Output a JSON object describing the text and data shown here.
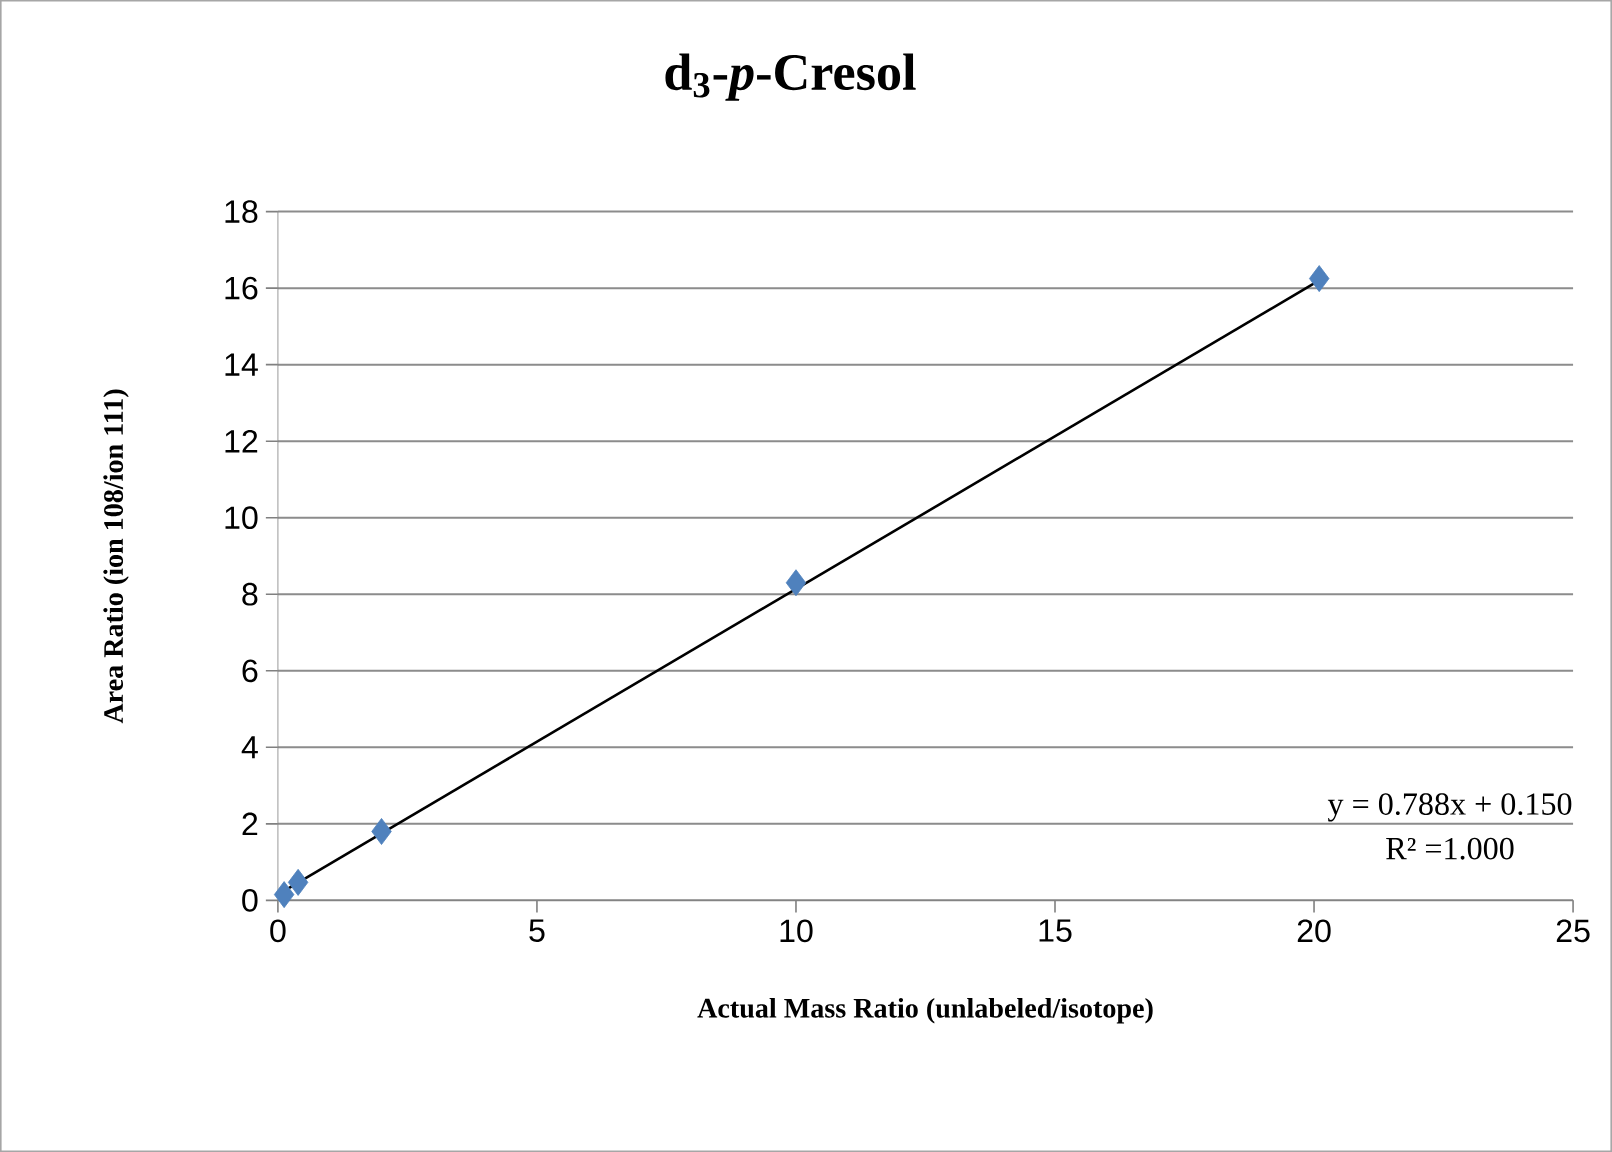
{
  "chart_data": {
    "type": "scatter",
    "title": "d$_{3}$-*p*-Cresol",
    "xlabel": "Actual Mass Ratio (unlabeled/isotope)",
    "ylabel": "Area Ratio (ion 108/ion 111)",
    "series": [
      {
        "type": "scatter",
        "color": "#4f81bd",
        "marker": "diamond",
        "x": [
          0.12,
          0.39,
          2.0,
          10.0,
          20.1
        ],
        "values": [
          0.15,
          0.47,
          1.8,
          8.3,
          16.25
        ]
      },
      {
        "type": "line",
        "color": "#000000",
        "marker": "none",
        "x": [
          0.12,
          20.1
        ],
        "values": [
          0.25,
          16.2
        ]
      }
    ],
    "xlim": [
      0,
      25
    ],
    "xticks": [
      0,
      5,
      10,
      15,
      20,
      25
    ],
    "ylim": [
      0,
      18
    ],
    "yticks": [
      0,
      2,
      4,
      6,
      8,
      10,
      12,
      14,
      16,
      18
    ],
    "grid": "y",
    "annotations": [
      "y = 0.788x + 0.150",
      "R² =1.000"
    ]
  }
}
